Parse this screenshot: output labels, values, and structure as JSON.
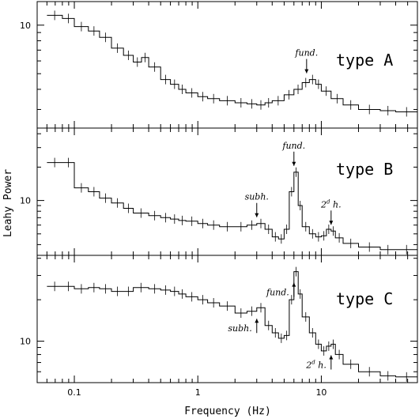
{
  "chart_data": {
    "type": "line",
    "xlabel": "Frequency (Hz)",
    "ylabel": "Leahy Power",
    "xscale": "log",
    "yscale": "log",
    "xlim": [
      0.05,
      60
    ],
    "x_ticks": [
      {
        "value": 0.1,
        "label": "0.1"
      },
      {
        "value": 1,
        "label": "1"
      },
      {
        "value": 10,
        "label": "10"
      }
    ],
    "panels": [
      {
        "name": "type A",
        "ylim": [
          2.3,
          14
        ],
        "y_ticks": [
          {
            "value": 10,
            "label": "10"
          }
        ],
        "annotations": [
          {
            "text": "fund.",
            "x": 7.6,
            "arrow": "down"
          }
        ],
        "series": [
          {
            "x": [
              0.06,
              0.08,
              0.1,
              0.13,
              0.16,
              0.2,
              0.25,
              0.3,
              0.35,
              0.4,
              0.5,
              0.6,
              0.7,
              0.8,
              1,
              1.2,
              1.5,
              2,
              2.5,
              3,
              3.5,
              4,
              5,
              6,
              7,
              8,
              9,
              10,
              12,
              15,
              20,
              30,
              40,
              60
            ],
            "y": [
              11.5,
              11,
              9.8,
              9.2,
              8.4,
              7.2,
              6.5,
              5.9,
              6.3,
              5.5,
              4.6,
              4.3,
              4.0,
              3.8,
              3.6,
              3.5,
              3.4,
              3.3,
              3.25,
              3.2,
              3.3,
              3.4,
              3.7,
              4.0,
              4.4,
              4.6,
              4.3,
              3.9,
              3.5,
              3.2,
              3.0,
              2.95,
              2.9,
              2.9
            ]
          }
        ]
      },
      {
        "name": "type B",
        "ylim": [
          3.2,
          45
        ],
        "y_ticks": [
          {
            "value": 10,
            "label": "10"
          }
        ],
        "annotations": [
          {
            "text": "fund.",
            "x": 6.0,
            "arrow": "down"
          },
          {
            "text": "subh.",
            "x": 3.0,
            "arrow": "down"
          },
          {
            "text": "2",
            "sup": "d",
            "text2": "h.",
            "x": 12.0,
            "arrow": "down"
          }
        ],
        "series": [
          {
            "x": [
              0.06,
              0.08,
              0.1,
              0.13,
              0.16,
              0.2,
              0.25,
              0.3,
              0.4,
              0.5,
              0.6,
              0.7,
              0.8,
              1,
              1.2,
              1.5,
              2,
              2.5,
              3,
              3.5,
              4,
              4.5,
              5,
              5.5,
              6,
              6.5,
              7,
              8,
              9,
              10,
              11,
              12,
              13,
              15,
              20,
              30,
              40,
              60
            ],
            "y": [
              22,
              22,
              13,
              12,
              10.5,
              9.5,
              8.5,
              7.7,
              7.3,
              7.0,
              6.8,
              6.6,
              6.5,
              6.2,
              6.0,
              5.8,
              5.8,
              6.0,
              6.2,
              5.5,
              4.7,
              4.5,
              5.5,
              12,
              18,
              9,
              5.8,
              5.0,
              4.7,
              4.8,
              5.5,
              5.3,
              4.6,
              4.1,
              3.8,
              3.6,
              3.6,
              3.55
            ]
          }
        ]
      },
      {
        "name": "type C",
        "ylim": [
          5,
          42
        ],
        "y_ticks": [
          {
            "value": 10,
            "label": "10"
          }
        ],
        "annotations": [
          {
            "text": "fund.",
            "x": 6.0,
            "arrow": "up"
          },
          {
            "text": "subh.",
            "x": 3.0,
            "arrow": "up"
          },
          {
            "text": "2",
            "sup": "d",
            "text2": "h.",
            "x": 12.0,
            "arrow": "up"
          }
        ],
        "series": [
          {
            "x": [
              0.06,
              0.08,
              0.1,
              0.13,
              0.16,
              0.2,
              0.25,
              0.3,
              0.4,
              0.5,
              0.6,
              0.7,
              0.8,
              1,
              1.2,
              1.5,
              2,
              2.5,
              3,
              3.5,
              4,
              4.5,
              5,
              5.5,
              6,
              6.5,
              7,
              8,
              9,
              10,
              11,
              12,
              13,
              15,
              20,
              30,
              40,
              60
            ],
            "y": [
              25,
              25,
              24,
              24.5,
              24,
              23,
              23,
              24.5,
              24,
              23.5,
              23,
              22,
              21,
              20,
              19,
              18,
              16,
              16.5,
              17.5,
              13,
              11.5,
              10.5,
              11,
              20,
              32,
              22,
              15,
              11.5,
              9.5,
              8.5,
              9.2,
              9.5,
              8,
              6.8,
              6.0,
              5.6,
              5.5,
              5.5
            ]
          }
        ]
      }
    ]
  }
}
